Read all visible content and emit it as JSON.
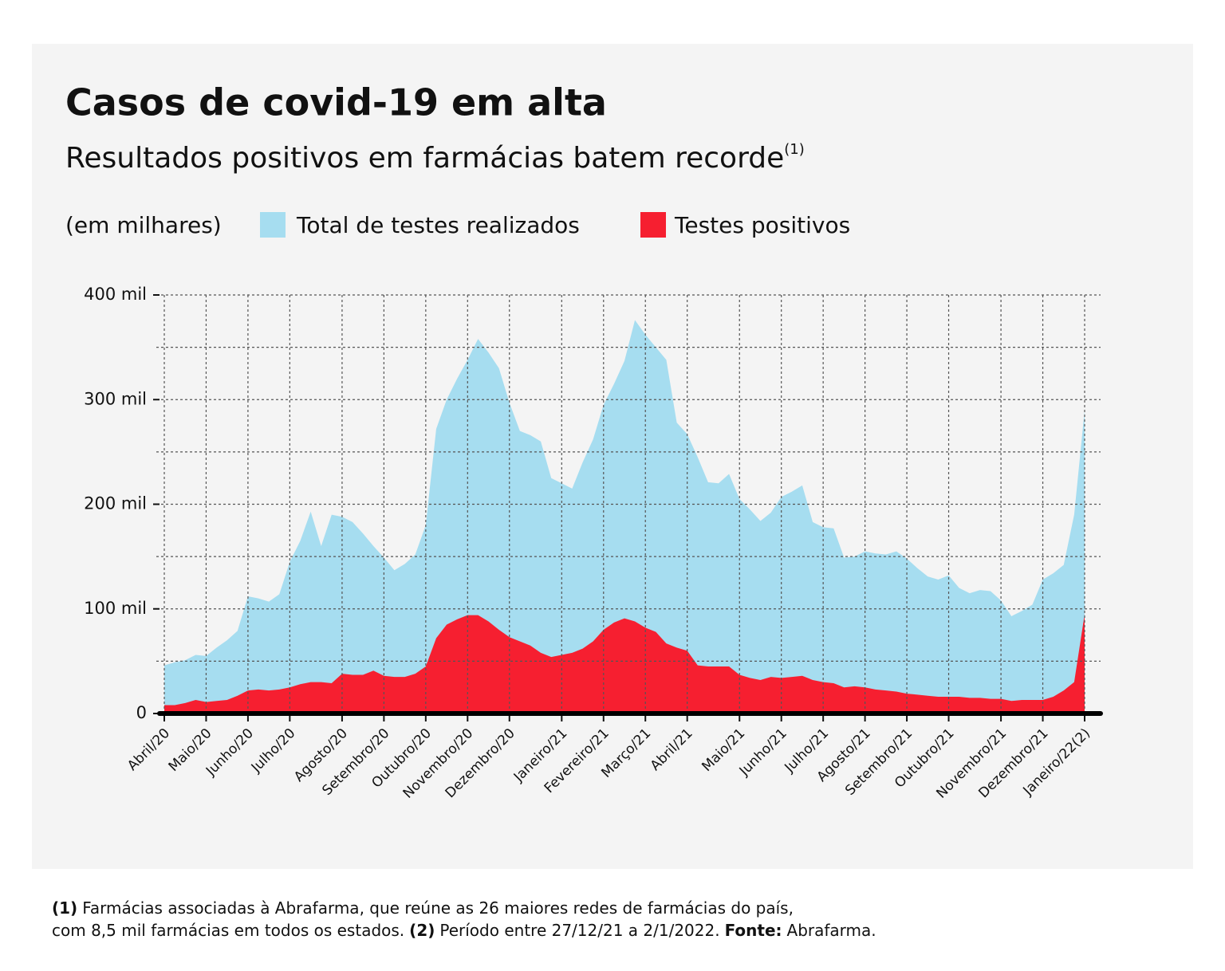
{
  "chart_data": {
    "type": "area",
    "title": "Casos de covid-19 em alta",
    "subtitle": "Resultados positivos em farmácias batem recorde",
    "subtitle_note": "(1)",
    "y_unit": "(em milhares)",
    "categories": [
      "Abril/20",
      null,
      null,
      null,
      "Maio/20",
      null,
      null,
      null,
      "Junho/20",
      null,
      null,
      null,
      "Julho/20",
      null,
      null,
      null,
      null,
      "Agosto/20",
      null,
      null,
      null,
      "Setembro/20",
      null,
      null,
      null,
      "Outubro/20",
      null,
      null,
      null,
      "Novembro/20",
      null,
      null,
      null,
      "Dezembro/20",
      null,
      null,
      null,
      null,
      "Janeiro/21",
      null,
      null,
      null,
      "Fevereiro/21",
      null,
      null,
      null,
      "Março/21",
      null,
      null,
      null,
      "Abril/21",
      null,
      null,
      null,
      null,
      "Maio/21",
      null,
      null,
      null,
      "Junho/21",
      null,
      null,
      null,
      "Julho/21",
      null,
      null,
      null,
      "Agosto/21",
      null,
      null,
      null,
      "Setembro/21",
      null,
      null,
      null,
      "Outubro/21",
      null,
      null,
      null,
      null,
      "Novembro/21",
      null,
      null,
      null,
      "Dezembro/21",
      null,
      null,
      null,
      "Janeiro/22"
    ],
    "last_category_note": "(2)",
    "series": [
      {
        "name": "Total de testes realizados",
        "color": "#a6ddf0",
        "values": [
          46,
          49,
          51,
          56,
          55,
          63,
          70,
          79,
          112,
          110,
          107,
          114,
          145,
          165,
          193,
          160,
          190,
          188,
          183,
          172,
          160,
          149,
          137,
          143,
          152,
          180,
          272,
          300,
          320,
          338,
          358,
          345,
          330,
          297,
          270,
          266,
          260,
          225,
          220,
          215,
          240,
          262,
          295,
          315,
          337,
          376,
          362,
          350,
          338,
          278,
          267,
          245,
          221,
          220,
          229,
          205,
          195,
          184,
          192,
          207,
          212,
          218,
          183,
          178,
          177,
          149,
          150,
          155,
          153,
          152,
          155,
          148,
          139,
          131,
          128,
          132,
          120,
          115,
          118,
          117,
          108,
          93,
          98,
          104,
          128,
          134,
          142,
          190,
          290
        ]
      },
      {
        "name": "Testes positivos",
        "color": "#f61f30",
        "values": [
          8,
          8,
          10,
          13,
          11,
          12,
          13,
          17,
          22,
          23,
          22,
          23,
          25,
          28,
          30,
          30,
          29,
          38,
          37,
          37,
          41,
          36,
          35,
          35,
          38,
          45,
          72,
          85,
          90,
          94,
          94,
          88,
          80,
          73,
          69,
          65,
          58,
          54,
          56,
          58,
          62,
          69,
          80,
          87,
          91,
          88,
          82,
          78,
          67,
          63,
          60,
          46,
          45,
          45,
          45,
          37,
          34,
          32,
          35,
          34,
          35,
          36,
          32,
          30,
          29,
          25,
          26,
          25,
          23,
          22,
          21,
          19,
          18,
          17,
          16,
          16,
          16,
          15,
          15,
          14,
          14,
          12,
          13,
          13,
          13,
          16,
          22,
          30,
          95
        ]
      }
    ],
    "ylim": [
      0,
      400
    ],
    "yticks": [
      0,
      {
        "value": 100,
        "label": "100 mil"
      },
      {
        "value": 200,
        "label": "200 mil"
      },
      {
        "value": 300,
        "label": "300 mil"
      },
      {
        "value": 400,
        "label": "400 mil"
      }
    ],
    "minor_yticks": [
      50,
      150,
      250,
      350
    ],
    "grid": true,
    "footnote_1_marker": "(1)",
    "footnote_1_text": [
      "Farmácias associadas à Abrafarma, que reúne as 26 maiores redes de farmácias do país,",
      "com 8,5 mil farmácias em todos os estados."
    ],
    "footnote_2_marker": "(2)",
    "footnote_2_text": "Período entre 27/12/21 a 2/1/2022.",
    "source_label": "Fonte:",
    "source": "Abrafarma."
  }
}
